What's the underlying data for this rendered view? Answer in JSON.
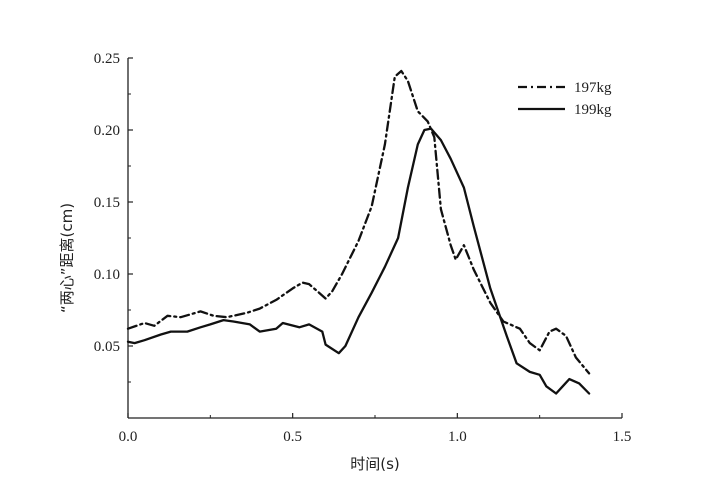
{
  "chart_data": {
    "type": "line",
    "title": "",
    "xlabel": "时间(s)",
    "ylabel": "“两心”距离(cm)",
    "xlim": [
      0.0,
      1.5
    ],
    "ylim": [
      0.0,
      0.25
    ],
    "xticks": [
      "0.0",
      "0.5",
      "1.0",
      "1.5"
    ],
    "yticks": [
      "0.05",
      "0.10",
      "0.15",
      "0.20",
      "0.25"
    ],
    "grid": false,
    "legend_position": "top-right",
    "series": [
      {
        "name": "197kg",
        "style": "dash-dot",
        "color": "#111111",
        "points": [
          [
            0.0,
            0.062
          ],
          [
            0.05,
            0.066
          ],
          [
            0.08,
            0.064
          ],
          [
            0.12,
            0.071
          ],
          [
            0.16,
            0.07
          ],
          [
            0.22,
            0.074
          ],
          [
            0.26,
            0.071
          ],
          [
            0.3,
            0.07
          ],
          [
            0.36,
            0.073
          ],
          [
            0.4,
            0.076
          ],
          [
            0.45,
            0.082
          ],
          [
            0.5,
            0.09
          ],
          [
            0.53,
            0.094
          ],
          [
            0.55,
            0.093
          ],
          [
            0.6,
            0.083
          ],
          [
            0.62,
            0.088
          ],
          [
            0.65,
            0.1
          ],
          [
            0.7,
            0.123
          ],
          [
            0.74,
            0.147
          ],
          [
            0.78,
            0.19
          ],
          [
            0.81,
            0.237
          ],
          [
            0.83,
            0.241
          ],
          [
            0.85,
            0.234
          ],
          [
            0.88,
            0.213
          ],
          [
            0.91,
            0.206
          ],
          [
            0.93,
            0.195
          ],
          [
            0.95,
            0.145
          ],
          [
            0.98,
            0.12
          ],
          [
            0.995,
            0.11
          ],
          [
            1.02,
            0.12
          ],
          [
            1.05,
            0.103
          ],
          [
            1.1,
            0.08
          ],
          [
            1.14,
            0.067
          ],
          [
            1.19,
            0.062
          ],
          [
            1.22,
            0.052
          ],
          [
            1.25,
            0.047
          ],
          [
            1.28,
            0.06
          ],
          [
            1.3,
            0.062
          ],
          [
            1.33,
            0.057
          ],
          [
            1.36,
            0.042
          ],
          [
            1.4,
            0.031
          ]
        ]
      },
      {
        "name": "199kg",
        "style": "solid",
        "color": "#111111",
        "points": [
          [
            0.0,
            0.053
          ],
          [
            0.02,
            0.052
          ],
          [
            0.05,
            0.054
          ],
          [
            0.1,
            0.058
          ],
          [
            0.13,
            0.06
          ],
          [
            0.18,
            0.06
          ],
          [
            0.22,
            0.063
          ],
          [
            0.25,
            0.065
          ],
          [
            0.29,
            0.068
          ],
          [
            0.32,
            0.067
          ],
          [
            0.37,
            0.065
          ],
          [
            0.4,
            0.06
          ],
          [
            0.45,
            0.062
          ],
          [
            0.47,
            0.066
          ],
          [
            0.52,
            0.063
          ],
          [
            0.55,
            0.065
          ],
          [
            0.59,
            0.06
          ],
          [
            0.6,
            0.051
          ],
          [
            0.64,
            0.045
          ],
          [
            0.66,
            0.05
          ],
          [
            0.7,
            0.07
          ],
          [
            0.74,
            0.087
          ],
          [
            0.78,
            0.105
          ],
          [
            0.82,
            0.125
          ],
          [
            0.85,
            0.16
          ],
          [
            0.88,
            0.19
          ],
          [
            0.9,
            0.2
          ],
          [
            0.92,
            0.201
          ],
          [
            0.95,
            0.193
          ],
          [
            0.98,
            0.18
          ],
          [
            1.02,
            0.16
          ],
          [
            1.05,
            0.133
          ],
          [
            1.1,
            0.09
          ],
          [
            1.15,
            0.057
          ],
          [
            1.18,
            0.038
          ],
          [
            1.22,
            0.032
          ],
          [
            1.25,
            0.03
          ],
          [
            1.27,
            0.022
          ],
          [
            1.3,
            0.017
          ],
          [
            1.32,
            0.022
          ],
          [
            1.34,
            0.027
          ],
          [
            1.37,
            0.024
          ],
          [
            1.4,
            0.017
          ]
        ]
      }
    ]
  }
}
